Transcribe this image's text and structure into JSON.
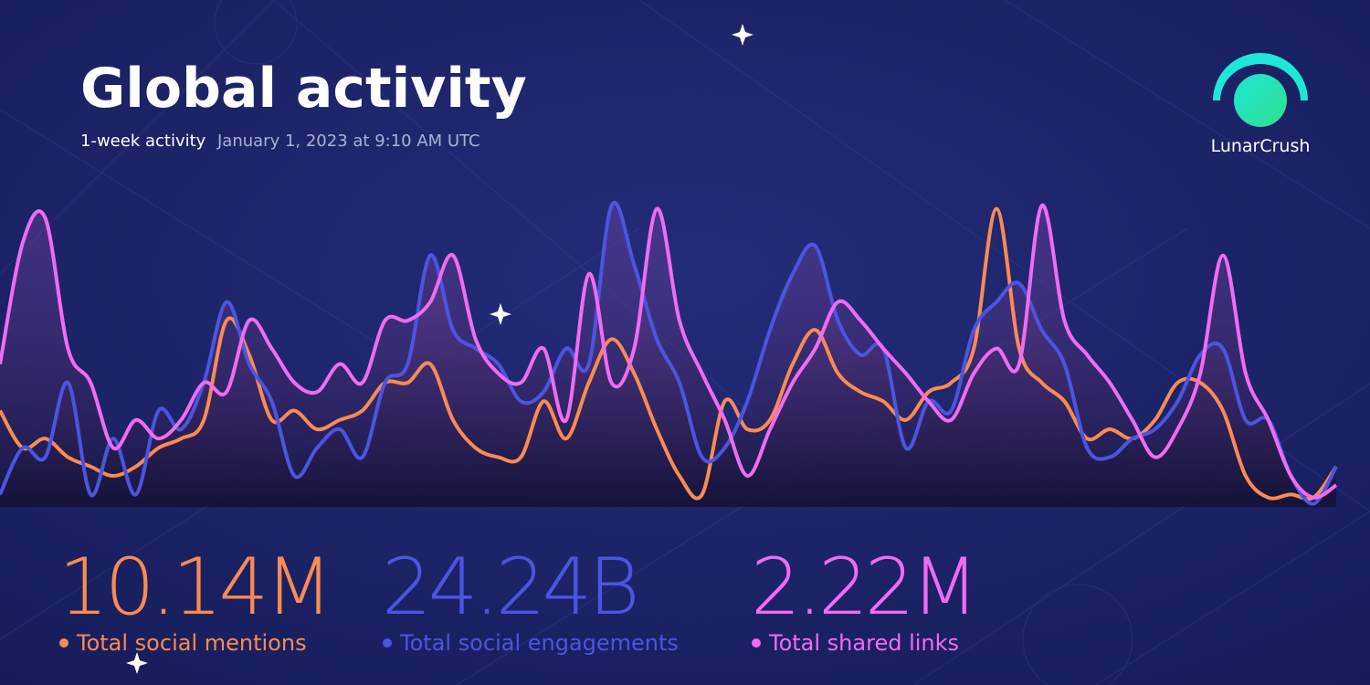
{
  "header": {
    "title": "Global activity",
    "subtitle": "1-week activity",
    "timestamp": "January 1, 2023 at 9:10 AM UTC",
    "brand": "LunarCrush"
  },
  "totals": [
    "10.14M",
    "24.24B",
    "2.22M"
  ],
  "chart_data": {
    "type": "line",
    "ylim": [
      0,
      100
    ],
    "categories": [
      null,
      null,
      null,
      null,
      null,
      null,
      null,
      null,
      null,
      null,
      null,
      null,
      null,
      null,
      null,
      null,
      null,
      null,
      null,
      null,
      null,
      null,
      null,
      null,
      null,
      null,
      null,
      null,
      null,
      null,
      null,
      null,
      null,
      null,
      null,
      null,
      null,
      null,
      null,
      null,
      null,
      null,
      null,
      null,
      null,
      null,
      null,
      null,
      null,
      null,
      null,
      null,
      null,
      null,
      null,
      null,
      null,
      null,
      null,
      null
    ],
    "series": [
      {
        "name": "Total social mentions",
        "color": "#f98b52",
        "values": [
          31,
          19,
          22,
          16,
          13,
          10,
          13,
          19,
          22,
          28,
          60,
          49,
          28,
          31,
          25,
          28,
          31,
          40,
          40,
          46,
          28,
          19,
          16,
          16,
          34,
          22,
          40,
          54,
          43,
          25,
          10,
          4,
          34,
          25,
          28,
          46,
          57,
          43,
          37,
          34,
          28,
          37,
          40,
          51,
          96,
          51,
          40,
          34,
          22,
          25,
          22,
          28,
          40,
          40,
          31,
          10,
          3,
          4,
          3,
          13
        ]
      },
      {
        "name": "Total social engagements",
        "color": "#4b55e0",
        "values": [
          4,
          19,
          16,
          40,
          4,
          22,
          4,
          31,
          25,
          40,
          66,
          46,
          34,
          10,
          19,
          25,
          16,
          40,
          46,
          81,
          57,
          51,
          46,
          34,
          37,
          51,
          46,
          97,
          78,
          54,
          40,
          16,
          19,
          34,
          57,
          75,
          84,
          60,
          49,
          51,
          19,
          34,
          31,
          57,
          66,
          72,
          57,
          46,
          19,
          16,
          22,
          25,
          34,
          49,
          51,
          28,
          28,
          10,
          1,
          13
        ]
      },
      {
        "name": "Total shared links",
        "color": "#f06cf0",
        "values": [
          46,
          85,
          93,
          51,
          40,
          19,
          28,
          22,
          28,
          40,
          37,
          60,
          51,
          40,
          37,
          46,
          40,
          60,
          60,
          66,
          81,
          54,
          43,
          40,
          51,
          28,
          75,
          40,
          51,
          96,
          60,
          43,
          28,
          10,
          25,
          40,
          51,
          66,
          60,
          51,
          43,
          34,
          28,
          43,
          51,
          46,
          97,
          60,
          49,
          40,
          28,
          16,
          25,
          43,
          81,
          43,
          28,
          10,
          3,
          7
        ]
      }
    ]
  }
}
